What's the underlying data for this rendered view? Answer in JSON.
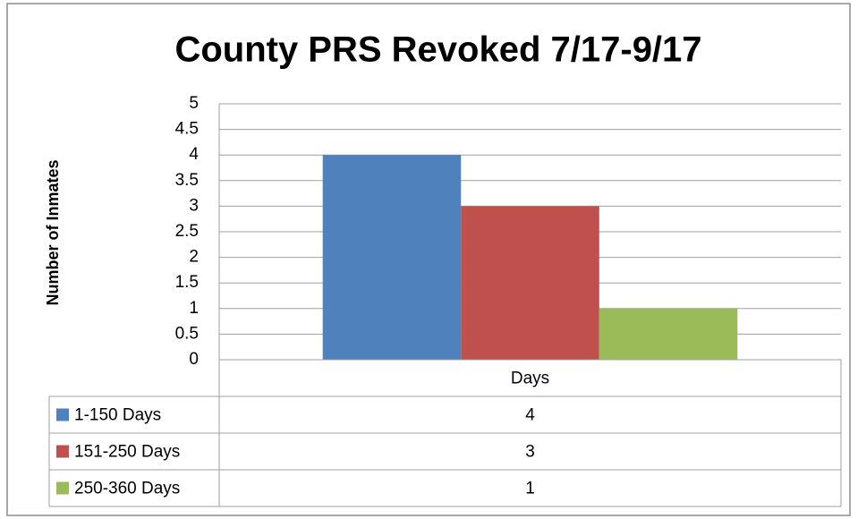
{
  "chart_data": {
    "type": "bar",
    "title": "County PRS Revoked 7/17-9/17",
    "y_label": "Number of Inmates",
    "categories": [
      "Days"
    ],
    "series": [
      {
        "name": "1-150 Days",
        "color": "#4f81bd",
        "values": [
          4
        ]
      },
      {
        "name": "151-250 Days",
        "color": "#c0504d",
        "values": [
          3
        ]
      },
      {
        "name": "250-360 Days",
        "color": "#9bbb59",
        "values": [
          1
        ]
      }
    ],
    "ylim": [
      0,
      5
    ],
    "yticks": [
      0,
      0.5,
      1,
      1.5,
      2,
      2.5,
      3,
      3.5,
      4,
      4.5,
      5
    ],
    "grid": true,
    "data_table": true
  }
}
